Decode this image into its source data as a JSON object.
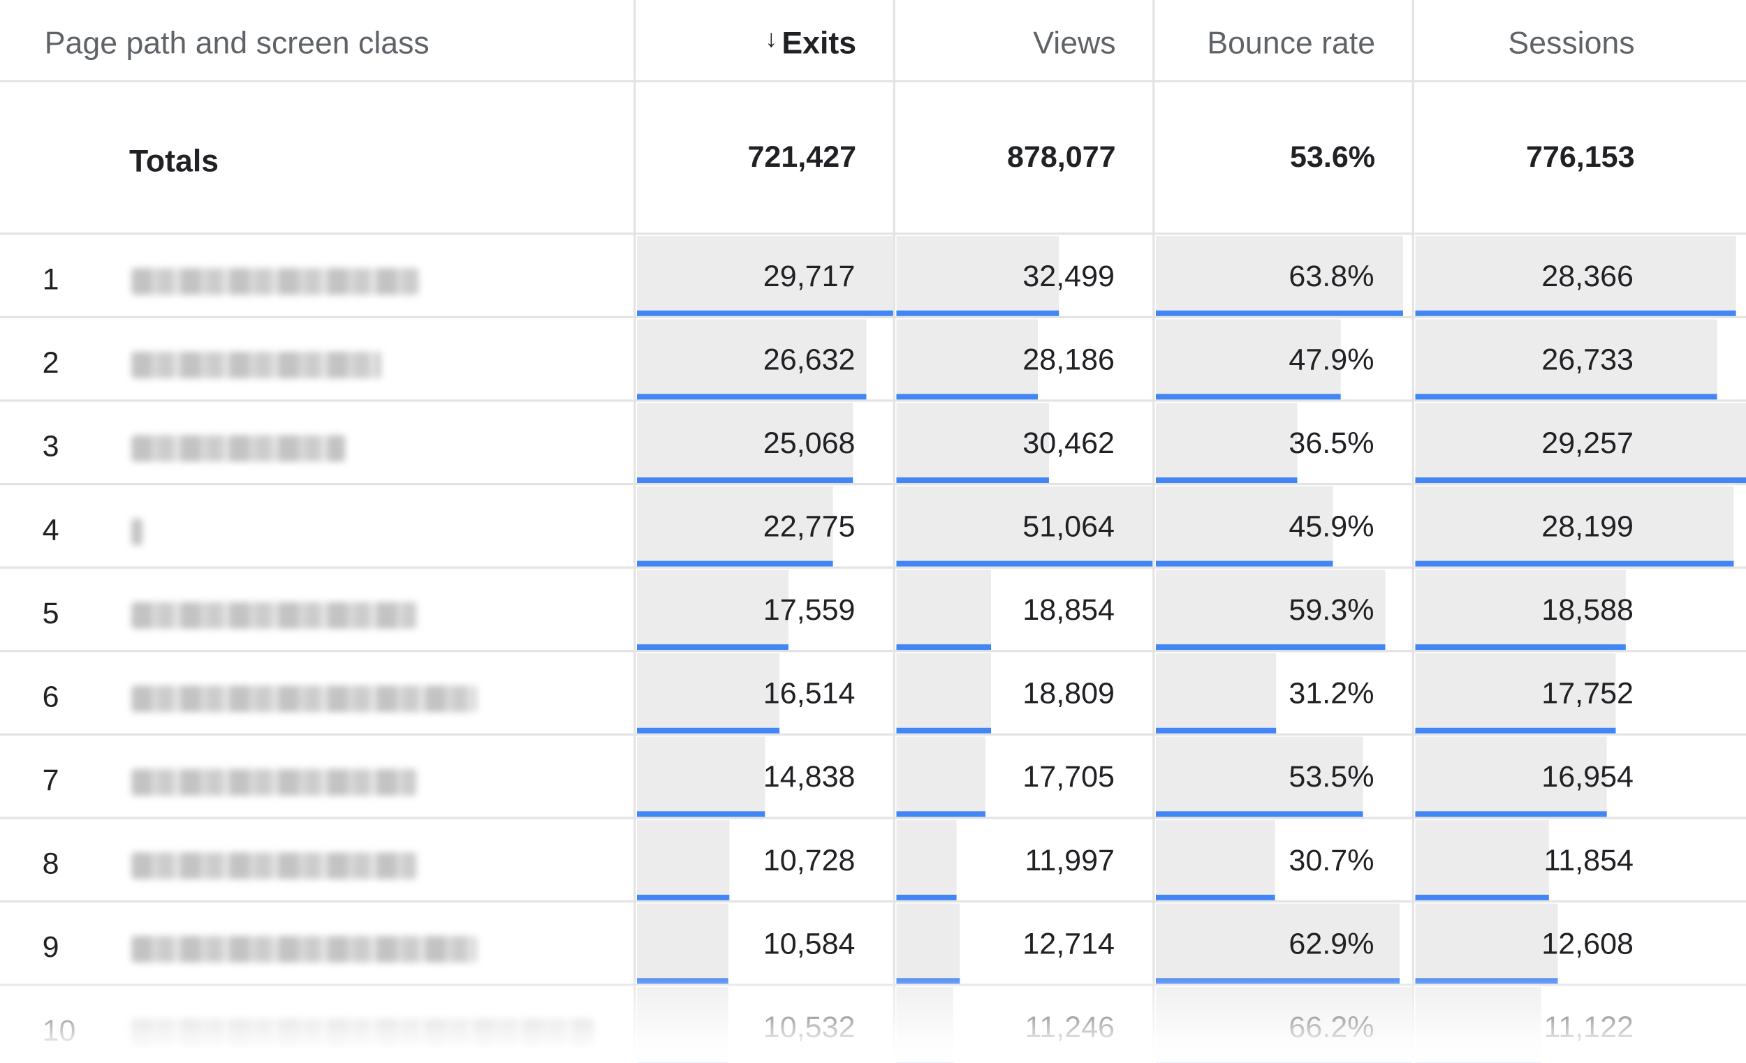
{
  "header": {
    "path_col": "Page path and screen class",
    "sort_arrow": "↓",
    "exits": "Exits",
    "views": "Views",
    "bounce_rate": "Bounce rate",
    "sessions": "Sessions"
  },
  "totals": {
    "label": "Totals",
    "exits": "721,427",
    "views": "878,077",
    "bounce_rate": "53.6%",
    "sessions": "776,153"
  },
  "accent_color": "#4285f4",
  "max_values": {
    "exits": 29717,
    "views": 51064,
    "bounce_rate": 66.2,
    "sessions": 29257
  },
  "rows": [
    {
      "rank": "1",
      "exits": "29,717",
      "views": "32,499",
      "bounce_rate": "63.8%",
      "sessions": "28,366",
      "exits_num": 29717,
      "views_num": 32499,
      "bounce_num": 63.8,
      "sessions_num": 28366
    },
    {
      "rank": "2",
      "exits": "26,632",
      "views": "28,186",
      "bounce_rate": "47.9%",
      "sessions": "26,733",
      "exits_num": 26632,
      "views_num": 28186,
      "bounce_num": 47.9,
      "sessions_num": 26733
    },
    {
      "rank": "3",
      "exits": "25,068",
      "views": "30,462",
      "bounce_rate": "36.5%",
      "sessions": "29,257",
      "exits_num": 25068,
      "views_num": 30462,
      "bounce_num": 36.5,
      "sessions_num": 29257
    },
    {
      "rank": "4",
      "exits": "22,775",
      "views": "51,064",
      "bounce_rate": "45.9%",
      "sessions": "28,199",
      "exits_num": 22775,
      "views_num": 51064,
      "bounce_num": 45.9,
      "sessions_num": 28199
    },
    {
      "rank": "5",
      "exits": "17,559",
      "views": "18,854",
      "bounce_rate": "59.3%",
      "sessions": "18,588",
      "exits_num": 17559,
      "views_num": 18854,
      "bounce_num": 59.3,
      "sessions_num": 18588
    },
    {
      "rank": "6",
      "exits": "16,514",
      "views": "18,809",
      "bounce_rate": "31.2%",
      "sessions": "17,752",
      "exits_num": 16514,
      "views_num": 18809,
      "bounce_num": 31.2,
      "sessions_num": 17752
    },
    {
      "rank": "7",
      "exits": "14,838",
      "views": "17,705",
      "bounce_rate": "53.5%",
      "sessions": "16,954",
      "exits_num": 14838,
      "views_num": 17705,
      "bounce_num": 53.5,
      "sessions_num": 16954
    },
    {
      "rank": "8",
      "exits": "10,728",
      "views": "11,997",
      "bounce_rate": "30.7%",
      "sessions": "11,854",
      "exits_num": 10728,
      "views_num": 11997,
      "bounce_num": 30.7,
      "sessions_num": 11854
    },
    {
      "rank": "9",
      "exits": "10,584",
      "views": "12,714",
      "bounce_rate": "62.9%",
      "sessions": "12,608",
      "exits_num": 10584,
      "views_num": 12714,
      "bounce_num": 62.9,
      "sessions_num": 12608
    },
    {
      "rank": "10",
      "exits": "10,532",
      "views": "11,246",
      "bounce_rate": "66.2%",
      "sessions": "11,122",
      "exits_num": 10532,
      "views_num": 11246,
      "bounce_num": 66.2,
      "sessions_num": 11122
    }
  ]
}
